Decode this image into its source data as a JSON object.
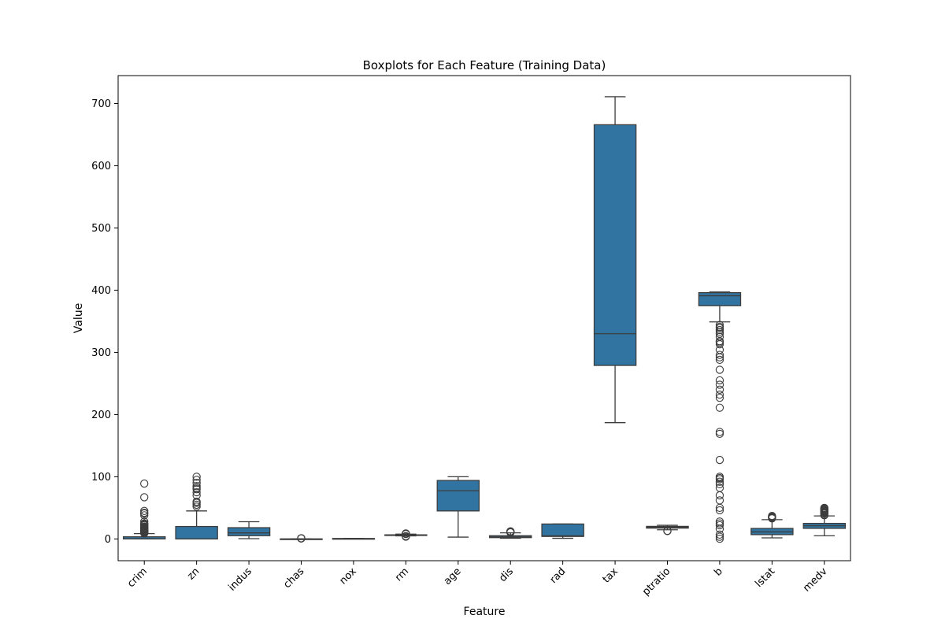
{
  "chart_data": {
    "type": "boxplot",
    "title": "Boxplots for Each Feature (Training Data)",
    "xlabel": "Feature",
    "ylabel": "Value",
    "ylim": [
      -35,
      745
    ],
    "yticks": [
      0,
      100,
      200,
      300,
      400,
      500,
      600,
      700
    ],
    "grid": false,
    "box_color": "#3274a1",
    "line_color": "#3d3d3d",
    "categories": [
      "crim",
      "zn",
      "indus",
      "chas",
      "nox",
      "rm",
      "age",
      "dis",
      "rad",
      "tax",
      "ptratio",
      "b",
      "lstat",
      "medv"
    ],
    "boxes": [
      {
        "name": "crim",
        "whisker_low": 0.0,
        "q1": 0.1,
        "median": 0.3,
        "q3": 3.5,
        "whisker_high": 8.5,
        "outliers": [
          9,
          9.5,
          10,
          10.5,
          11,
          11.5,
          12,
          13,
          13.5,
          14,
          15,
          15.5,
          16,
          17,
          18,
          19,
          20,
          22,
          23,
          24,
          25,
          28,
          38,
          41,
          42,
          45,
          67,
          89
        ]
      },
      {
        "name": "zn",
        "whisker_low": 0,
        "q1": 0,
        "median": 0,
        "q3": 20,
        "whisker_high": 45,
        "outliers": [
          52,
          55,
          58,
          60,
          70,
          75,
          80,
          82,
          85,
          90,
          95,
          100
        ]
      },
      {
        "name": "indus",
        "whisker_low": 0.5,
        "q1": 5.2,
        "median": 9.7,
        "q3": 18.1,
        "whisker_high": 27.7,
        "outliers": []
      },
      {
        "name": "chas",
        "whisker_low": 0,
        "q1": 0,
        "median": 0,
        "q3": 0,
        "whisker_high": 0,
        "outliers": [
          1,
          1,
          1,
          1
        ]
      },
      {
        "name": "nox",
        "whisker_low": 0.38,
        "q1": 0.45,
        "median": 0.54,
        "q3": 0.62,
        "whisker_high": 0.87,
        "outliers": []
      },
      {
        "name": "rm",
        "whisker_low": 4.9,
        "q1": 5.9,
        "median": 6.2,
        "q3": 6.6,
        "whisker_high": 7.7,
        "outliers": [
          3.6,
          4.1,
          4.5,
          7.9,
          8.2,
          8.4,
          8.7,
          8.8
        ]
      },
      {
        "name": "age",
        "whisker_low": 2.9,
        "q1": 45,
        "median": 77.5,
        "q3": 94,
        "whisker_high": 100,
        "outliers": []
      },
      {
        "name": "dis",
        "whisker_low": 1.1,
        "q1": 2.1,
        "median": 3.2,
        "q3": 5.2,
        "whisker_high": 9.8,
        "outliers": [
          10.5,
          10.7,
          11.0,
          12.1,
          12.1
        ]
      },
      {
        "name": "rad",
        "whisker_low": 1,
        "q1": 4,
        "median": 5,
        "q3": 24,
        "whisker_high": 24,
        "outliers": []
      },
      {
        "name": "tax",
        "whisker_low": 187,
        "q1": 279,
        "median": 330,
        "q3": 666,
        "whisker_high": 711,
        "outliers": []
      },
      {
        "name": "ptratio",
        "whisker_low": 14.7,
        "q1": 17.4,
        "median": 19.0,
        "q3": 20.2,
        "whisker_high": 22.0,
        "outliers": [
          12.6,
          13.0,
          13.0
        ]
      },
      {
        "name": "b",
        "whisker_low": 349,
        "q1": 375,
        "median": 391,
        "q3": 396,
        "whisker_high": 397,
        "outliers": [
          0.3,
          3.5,
          7,
          16,
          22,
          25,
          28,
          46,
          50,
          62,
          70,
          82,
          88,
          92,
          96,
          98,
          100,
          127,
          169,
          172,
          211,
          227,
          232,
          240,
          248,
          255,
          272,
          288,
          292,
          296,
          304,
          313,
          316,
          318,
          325,
          330,
          333,
          336,
          339,
          341,
          344
        ]
      },
      {
        "name": "lstat",
        "whisker_low": 1.7,
        "q1": 6.9,
        "median": 11.3,
        "q3": 16.9,
        "whisker_high": 31.0,
        "outliers": [
          33,
          34,
          35,
          36,
          37
        ]
      },
      {
        "name": "medv",
        "whisker_low": 5,
        "q1": 17,
        "median": 21.2,
        "q3": 25,
        "whisker_high": 37,
        "outliers": [
          38,
          39,
          41,
          42,
          43,
          44,
          45,
          46,
          47,
          48,
          49,
          50
        ]
      }
    ]
  }
}
